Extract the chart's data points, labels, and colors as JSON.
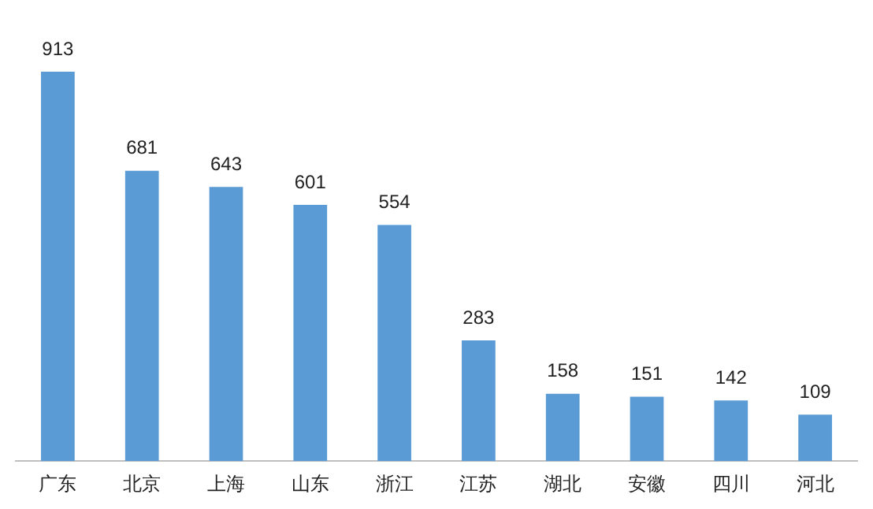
{
  "chart_data": {
    "type": "bar",
    "categories": [
      "广东",
      "北京",
      "上海",
      "山东",
      "浙江",
      "江苏",
      "湖北",
      "安徽",
      "四川",
      "河北"
    ],
    "values": [
      913,
      681,
      643,
      601,
      554,
      283,
      158,
      151,
      142,
      109
    ],
    "color": "#5b9bd5",
    "data_labels": true,
    "grid": false,
    "legend": false
  }
}
